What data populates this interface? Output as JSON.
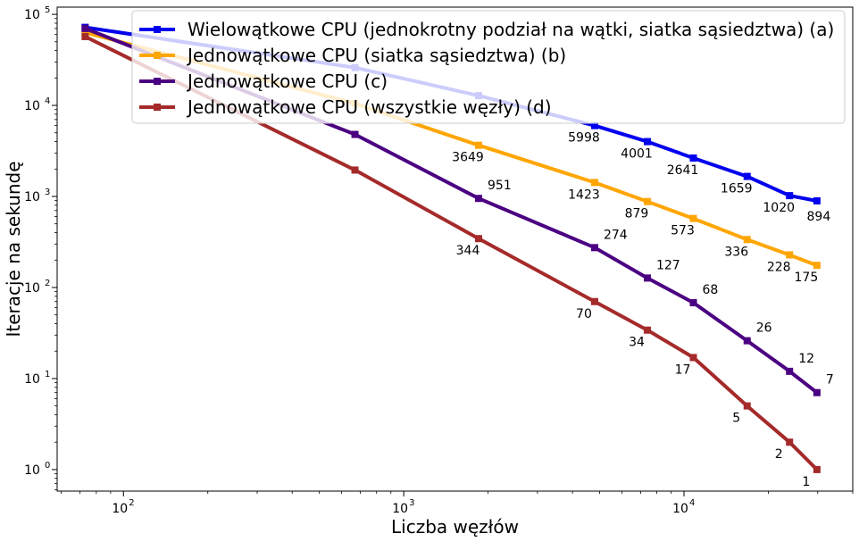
{
  "chart_data": {
    "type": "line",
    "xlabel": "Liczba węzłów",
    "ylabel": "Iteracje na sekundę",
    "xscale": "log",
    "yscale": "log",
    "xlim": [
      58,
      40000
    ],
    "ylim": [
      0.58,
      120000
    ],
    "x_ticks": [
      100,
      1000,
      10000
    ],
    "x_tick_labels": [
      "10^2",
      "10^3",
      "10^4"
    ],
    "y_ticks": [
      1,
      10,
      100,
      1000,
      10000,
      100000
    ],
    "y_tick_labels": [
      "10^0",
      "10^1",
      "10^2",
      "10^3",
      "10^4",
      "10^5"
    ],
    "grid": false,
    "legend_position": "top-right",
    "series": [
      {
        "name": "Wielowątkowe CPU (jednokrotny podział na wątki, siatka sąsiedztwa) (a)",
        "color": "#0000ee",
        "x": [
          73,
          670,
          1850,
          4800,
          7400,
          10800,
          16800,
          23800,
          29800
        ],
        "values": [
          72000,
          26000,
          12800,
          5998,
          4001,
          2641,
          1659,
          1020,
          894
        ],
        "labels": [
          "",
          "",
          "",
          "5998",
          "4001",
          "2641",
          "1659",
          "1020",
          "894"
        ]
      },
      {
        "name": "Jednowątkowe CPU (siatka sąsiedztwa) (b)",
        "color": "#ffa500",
        "x": [
          73,
          670,
          1850,
          4800,
          7400,
          10800,
          16800,
          23800,
          29800
        ],
        "values": [
          63000,
          10500,
          3649,
          1423,
          879,
          573,
          336,
          228,
          175
        ],
        "labels": [
          "",
          "",
          "3649",
          "1423",
          "879",
          "573",
          "336",
          "228",
          "175"
        ]
      },
      {
        "name": "Jednowątkowe CPU (c)",
        "color": "#4b0082",
        "x": [
          73,
          670,
          1850,
          4800,
          7400,
          10800,
          16800,
          23800,
          29800
        ],
        "values": [
          70000,
          4800,
          951,
          274,
          127,
          68,
          26,
          12,
          7
        ],
        "labels": [
          "",
          "",
          "951",
          "274",
          "127",
          "68",
          "26",
          "12",
          "7"
        ]
      },
      {
        "name": "Jednowątkowe CPU (wszystkie węzły) (d)",
        "color": "#a52a2a",
        "x": [
          73,
          670,
          1850,
          4800,
          7400,
          10800,
          16800,
          23800,
          29800
        ],
        "values": [
          57000,
          1950,
          344,
          70,
          34,
          17,
          5,
          2,
          1
        ],
        "labels": [
          "",
          "",
          "344",
          "70",
          "34",
          "17",
          "5",
          "2",
          "1"
        ]
      }
    ]
  }
}
